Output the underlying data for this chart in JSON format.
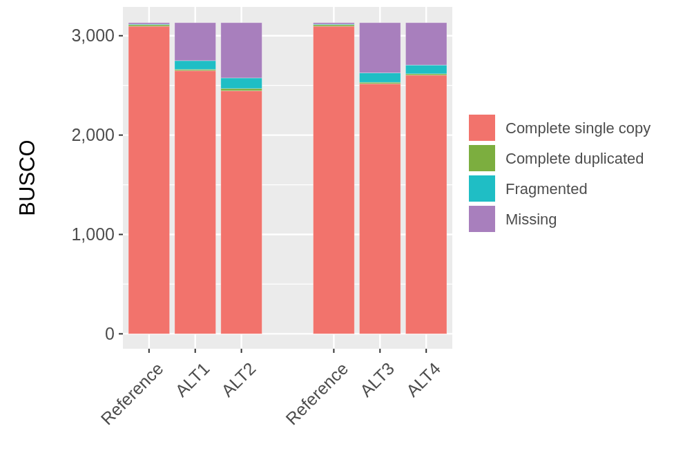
{
  "chart_data": {
    "type": "bar",
    "stacked": true,
    "ylabel": "BUSCO",
    "categories": [
      "Reference",
      "ALT1",
      "ALT2",
      null,
      "Reference",
      "ALT3",
      "ALT4"
    ],
    "series": [
      {
        "name": "Complete single copy",
        "color": "#f2736c",
        "values": [
          3095,
          2649,
          2446,
          null,
          3095,
          2517,
          2603
        ]
      },
      {
        "name": "Complete duplicated",
        "color": "#7cae3f",
        "values": [
          15,
          12,
          23,
          null,
          15,
          14,
          14
        ]
      },
      {
        "name": "Fragmented",
        "color": "#1fbec5",
        "values": [
          6,
          88,
          106,
          null,
          6,
          95,
          88
        ]
      },
      {
        "name": "Missing",
        "color": "#a87fbd",
        "values": [
          15,
          382,
          556,
          null,
          15,
          505,
          426
        ]
      }
    ],
    "ylim": [
      -150,
      3290
    ],
    "yticks": [
      {
        "value": 0,
        "label": "0"
      },
      {
        "value": 1000,
        "label": "1,000"
      },
      {
        "value": 2000,
        "label": "2,000"
      },
      {
        "value": 3000,
        "label": "3,000"
      }
    ],
    "grid": true,
    "legend": "right"
  }
}
